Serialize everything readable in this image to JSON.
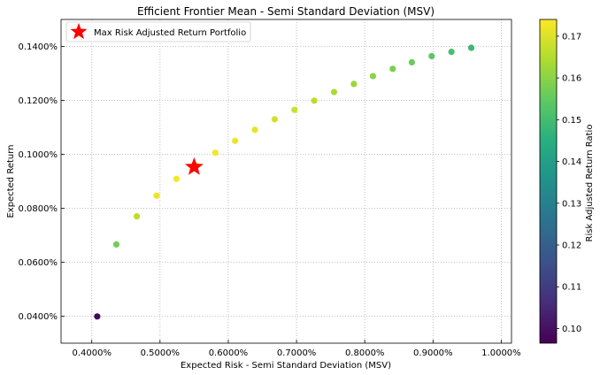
{
  "chart_data": {
    "type": "scatter",
    "title": "Efficient Frontier Mean - Semi Standard Deviation (MSV)",
    "xlabel": "Expected Risk - Semi Standard Deviation (MSV)",
    "ylabel": "Expected Return",
    "xlim": [
      0.00355,
      0.01015
    ],
    "ylim": [
      0.0003,
      0.0015
    ],
    "xticks": [
      0.004,
      0.005,
      0.006,
      0.007,
      0.008,
      0.009,
      0.01
    ],
    "xtick_labels": [
      "0.4000%",
      "0.5000%",
      "0.6000%",
      "0.7000%",
      "0.8000%",
      "0.9000%",
      "1.0000%"
    ],
    "yticks": [
      0.0004,
      0.0006,
      0.0008,
      0.001,
      0.0012,
      0.0014
    ],
    "ytick_labels": [
      "0.0400%",
      "0.0600%",
      "0.0800%",
      "0.1000%",
      "0.1200%",
      "0.1400%"
    ],
    "grid": true,
    "legend_position": "top-left",
    "series": [
      {
        "x": [
          0.00408,
          0.00436,
          0.00466,
          0.00495,
          0.00524,
          0.00553,
          0.00581,
          0.0061,
          0.00639,
          0.00668,
          0.00697,
          0.00726,
          0.00755,
          0.00784,
          0.00812,
          0.00841,
          0.00869,
          0.00898,
          0.00927,
          0.00956
        ],
        "y": [
          0.000399,
          0.000666,
          0.00077,
          0.000847,
          0.000909,
          0.000958,
          0.001006,
          0.00105,
          0.001091,
          0.00113,
          0.001165,
          0.001199,
          0.001231,
          0.001261,
          0.00129,
          0.001317,
          0.001341,
          0.001364,
          0.00138,
          0.001395
        ],
        "ratio": [
          0.098,
          0.157,
          0.166,
          0.172,
          0.173,
          0.173,
          0.173,
          0.172,
          0.171,
          0.169,
          0.168,
          0.166,
          0.164,
          0.162,
          0.16,
          0.158,
          0.156,
          0.154,
          0.151,
          0.148
        ]
      }
    ],
    "highlight": {
      "label": "Max Risk Adjusted Return Portfolio",
      "x": 0.0055,
      "y": 0.000953,
      "color": "#ff0000",
      "marker": "star"
    },
    "colorbar": {
      "label": "Risk Adjusted Return Ratio",
      "colormap": "viridis",
      "range": [
        0.0965,
        0.174
      ],
      "ticks": [
        0.1,
        0.11,
        0.12,
        0.13,
        0.14,
        0.15,
        0.16,
        0.17
      ],
      "tick_labels": [
        "0.10",
        "0.11",
        "0.12",
        "0.13",
        "0.14",
        "0.15",
        "0.16",
        "0.17"
      ]
    }
  }
}
